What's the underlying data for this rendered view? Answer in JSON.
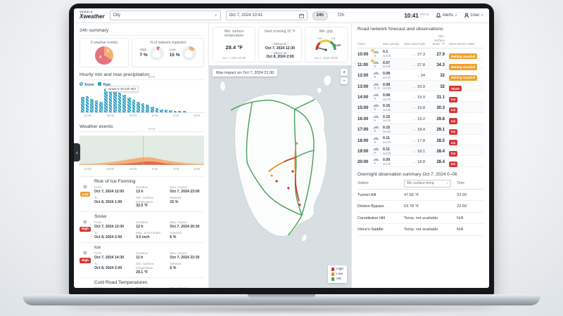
{
  "topbar": {
    "brand_top": "VAISALA",
    "brand": "Xweather",
    "city_placeholder": "City",
    "datetime": "Oct 7, 2024 10:41",
    "range_options": [
      "24h",
      "72h"
    ],
    "clock": "10:41",
    "clock_tz": "UTC+11",
    "alerts_label": "Alerts",
    "user_label": "User"
  },
  "left": {
    "title": "24h summary",
    "events_label": "6 weather events",
    "pie_labels": [
      "4",
      "2"
    ],
    "network_label": "% of network impacted",
    "high_label": "High",
    "high_value": "7 %",
    "low_label": "Low",
    "low_value": "15 %",
    "precip": {
      "title": "Hourly min and max precipitation",
      "legend": [
        "Snow",
        "Rain"
      ],
      "tooltip": "Snow 0.76 in/h N/A",
      "x_ticks": [
        "12:00",
        "16:00",
        "20:00",
        "0:00",
        "4:00",
        "8:00"
      ],
      "x_sub": "Oct 8",
      "values": [
        0.5,
        0.52,
        0.42,
        0.38,
        0.34,
        0.76,
        0.74,
        0.7,
        0.62,
        0.55,
        0.46,
        0.4,
        0.34,
        0.3,
        0.24,
        0.18,
        0.13,
        0.1,
        0.08,
        0.06,
        0.05,
        0.04,
        0.04
      ]
    },
    "events_chart": {
      "title": "Weather events",
      "x_ticks": [
        "12:00",
        "16:00",
        "20:00",
        "0:00",
        "4:00",
        "8:00"
      ],
      "x_sub": "Oct 8"
    },
    "cards": [
      {
        "title": "Risk of Ice Forming",
        "severity": "Low",
        "sev_class": "orange",
        "icon": "❄",
        "fields": [
          {
            "label": "From",
            "value": "Oct 7, 2024 12:00"
          },
          {
            "label": "Duration",
            "value": "13 h"
          },
          {
            "label": "Max. impact",
            "value": "Oct 7, 2024 23:00"
          },
          {
            "label": "To",
            "value": "Oct 8, 2024 1:00"
          },
          {
            "label": "Min. Surface temperature",
            "value": "32.0 °F"
          },
          {
            "label": "Network",
            "value": "15 %"
          }
        ]
      },
      {
        "title": "Snow",
        "severity": "High",
        "sev_class": "red",
        "icon": "❄",
        "fields": [
          {
            "label": "From",
            "value": "Oct 7, 2024 13:30"
          },
          {
            "label": "Duration",
            "value": "12 h"
          },
          {
            "label": "Max. impact",
            "value": "Oct 7, 2024 20:30"
          },
          {
            "label": "To",
            "value": "Oct 8, 2024 2:00"
          },
          {
            "label": "Max. Snow depth",
            "value": "0.5 inch"
          },
          {
            "label": "Network",
            "value": "6 %"
          }
        ]
      },
      {
        "title": "Ice",
        "severity": "High",
        "sev_class": "red",
        "icon": "❄",
        "fields": [
          {
            "label": "From",
            "value": "Oct 7, 2024 14:30"
          },
          {
            "label": "Duration",
            "value": "11 h"
          },
          {
            "label": "Max. impact",
            "value": "Oct 7, 2024 22:30"
          },
          {
            "label": "To",
            "value": "Oct 8, 2024 2:00"
          },
          {
            "label": "Min. Surface temperature",
            "value": "29.1 °F"
          },
          {
            "label": "Network",
            "value": "6 %"
          }
        ]
      },
      {
        "title": "Cold Road Temperatures",
        "severity": "",
        "sev_class": "",
        "icon": "",
        "fields": [
          {
            "label": "From",
            "value": ""
          },
          {
            "label": "Duration",
            "value": ""
          },
          {
            "label": "Max. impact",
            "value": ""
          }
        ]
      }
    ]
  },
  "stats": {
    "min_surface": {
      "title": "Min. surface temperature",
      "value": "28.4 °F",
      "time": "Oct 7, 2024 20:00"
    },
    "crossing": {
      "title": "Next crossing 32 °F",
      "below_label": "↓ below 32 °",
      "below_time": "Oct 7, 2024 12:30",
      "above_label": "↑ above 32 °",
      "above_time": "Oct 8, 2024 2:00"
    },
    "grip": {
      "title": "Min. grip",
      "tick_low": "0.4",
      "tick_high": "0.6",
      "value": "0.07",
      "time": "Oct 7, 2024 18:00"
    }
  },
  "map": {
    "overlay_label": "Max impact on Oct 7, 2024 21:30",
    "zoom_in": "+",
    "zoom_out": "−",
    "legend": [
      {
        "label": "High",
        "color": "#c0392b"
      },
      {
        "label": "Low",
        "color": "#ef8f1f"
      },
      {
        "label": "OK",
        "color": "#3f9e53"
      }
    ]
  },
  "forecast": {
    "title": "Road network forecast and observations",
    "columns": [
      "Time",
      "",
      "Max precip.",
      "Max wind mph",
      "Min. surface temp. °F",
      "Most severe state"
    ],
    "rows": [
      {
        "time": "10:00",
        "icon": "wx-sun",
        "precip_v": "0.1",
        "precip_u": "inch/h",
        "wind": "27.3",
        "wind_deg": 25,
        "temp": "27.9",
        "state": "Melting snowfall",
        "state_class": "orange"
      },
      {
        "time": "11:00",
        "icon": "wx-sun",
        "precip_v": "0.07",
        "precip_u": "inch/h",
        "wind": "27.8",
        "wind_deg": 25,
        "temp": "34.3",
        "state": "Melting snowfall",
        "state_class": "orange"
      },
      {
        "time": "12:00",
        "icon": "wx-snow",
        "precip_v": "0.08",
        "precip_u": "inch/h",
        "wind": "24",
        "wind_deg": 30,
        "temp": "32",
        "state": "Melting snowfall",
        "state_class": "orange"
      },
      {
        "time": "13:00",
        "icon": "wx-heavy",
        "precip_v": "0.08",
        "precip_u": "inch/h",
        "wind": "20.9",
        "wind_deg": 35,
        "temp": "32",
        "state": "Slush",
        "state_class": "red"
      },
      {
        "time": "14:00",
        "icon": "wx-snow",
        "precip_v": "0.08",
        "precip_u": "inch/h",
        "wind": "19.9",
        "wind_deg": 40,
        "temp": "31.1",
        "state": "Ice",
        "state_class": "red"
      },
      {
        "time": "15:00",
        "icon": "wx-snow",
        "precip_v": "0.15",
        "precip_u": "inch/h",
        "wind": "19.8",
        "wind_deg": 40,
        "temp": "30.3",
        "state": "Ice",
        "state_class": "red"
      },
      {
        "time": "16:00",
        "icon": "wx-snow",
        "precip_v": "0.15",
        "precip_u": "inch/h",
        "wind": "19.2",
        "wind_deg": 42,
        "temp": "29.8",
        "state": "Ice",
        "state_class": "red"
      },
      {
        "time": "17:00",
        "icon": "wx-snow",
        "precip_v": "0.15",
        "precip_u": "inch/h",
        "wind": "18.4",
        "wind_deg": 45,
        "temp": "29.1",
        "state": "Ice",
        "state_class": "red"
      },
      {
        "time": "18:00",
        "icon": "wx-snow",
        "precip_v": "0.11",
        "precip_u": "inch/h",
        "wind": "17.8",
        "wind_deg": 48,
        "temp": "28.5",
        "state": "Ice",
        "state_class": "red"
      },
      {
        "time": "19:00",
        "icon": "wx-snow",
        "precip_v": "0.11",
        "precip_u": "inch/h",
        "wind": "18.1",
        "wind_deg": 48,
        "temp": "28.4",
        "state": "Ice",
        "state_class": "red"
      },
      {
        "time": "20:00",
        "icon": "wx-snow",
        "precip_v": "0.09",
        "precip_u": "inch/h",
        "wind": "18.8",
        "wind_deg": 50,
        "temp": "28.4",
        "state": "Ice",
        "state_class": "red"
      }
    ]
  },
  "overnight": {
    "title": "Overnight observation summary Oct 7, 2024 0–06",
    "columns": [
      "Station",
      "Min surface temp.",
      "Time"
    ],
    "sort_icon": "↓",
    "rows": [
      {
        "station": "Tunnel Hill",
        "temp": "47.66 °F",
        "time": "23:20"
      },
      {
        "station": "Drixton Bypass",
        "temp": "53.78 °F",
        "time": "22:50"
      },
      {
        "station": "Constitution Hill",
        "temp": "Temp. not available",
        "time": "N/A"
      },
      {
        "station": "Vince's Saddle",
        "temp": "Temp. not available",
        "time": "N/A"
      }
    ]
  },
  "colors": {
    "teal": "#2a9ec0",
    "severity_red": "#d03a3a",
    "severity_orange": "#efa02d",
    "ok_green": "#3f9e53",
    "pie_pink": "#e4737f",
    "pie_orange": "#f2b173"
  },
  "chart_data": [
    {
      "type": "pie",
      "title": "6 weather events",
      "labels": [
        "severe",
        "moderate"
      ],
      "values": [
        4,
        2
      ],
      "colors": [
        "#e4737f",
        "#f2b173"
      ]
    },
    {
      "type": "pie",
      "title": "% of network impacted — High",
      "labels": [
        "High",
        "remainder"
      ],
      "values": [
        7,
        93
      ]
    },
    {
      "type": "pie",
      "title": "% of network impacted — Low",
      "labels": [
        "Low",
        "remainder"
      ],
      "values": [
        15,
        85
      ]
    },
    {
      "type": "bar",
      "title": "Hourly min and max precipitation",
      "ylabel": "in/h",
      "x_ticks": [
        "12:00",
        "16:00",
        "20:00",
        "0:00",
        "4:00",
        "8:00"
      ],
      "series": [
        {
          "name": "Snow",
          "values": [
            0.5,
            0.52,
            0.42,
            0.38,
            0.34,
            0.76,
            0.74,
            0.7,
            0.62,
            0.55,
            0.46,
            0.4,
            0.34,
            0.3,
            0.24,
            0.18,
            0.13,
            0.1,
            0.08,
            0.06,
            0.05,
            0.04,
            0.04
          ]
        }
      ],
      "annotation": "Snow 0.76 in/h N/A",
      "legend_position": "top"
    },
    {
      "type": "area",
      "title": "Weather events",
      "x_ticks": [
        "12:00",
        "16:00",
        "20:00",
        "0:00",
        "4:00",
        "8:00"
      ],
      "series": [
        {
          "name": "low-severity",
          "values": [
            0.05,
            0.1,
            0.2,
            0.3,
            0.25,
            0.12,
            0.05,
            0.03
          ]
        },
        {
          "name": "high-severity",
          "values": [
            0.02,
            0.05,
            0.1,
            0.15,
            0.12,
            0.06,
            0.02,
            0.01
          ]
        }
      ]
    },
    {
      "type": "gauge",
      "title": "Min. grip",
      "value": 0.07,
      "ticks": [
        0.4,
        0.6
      ]
    }
  ]
}
